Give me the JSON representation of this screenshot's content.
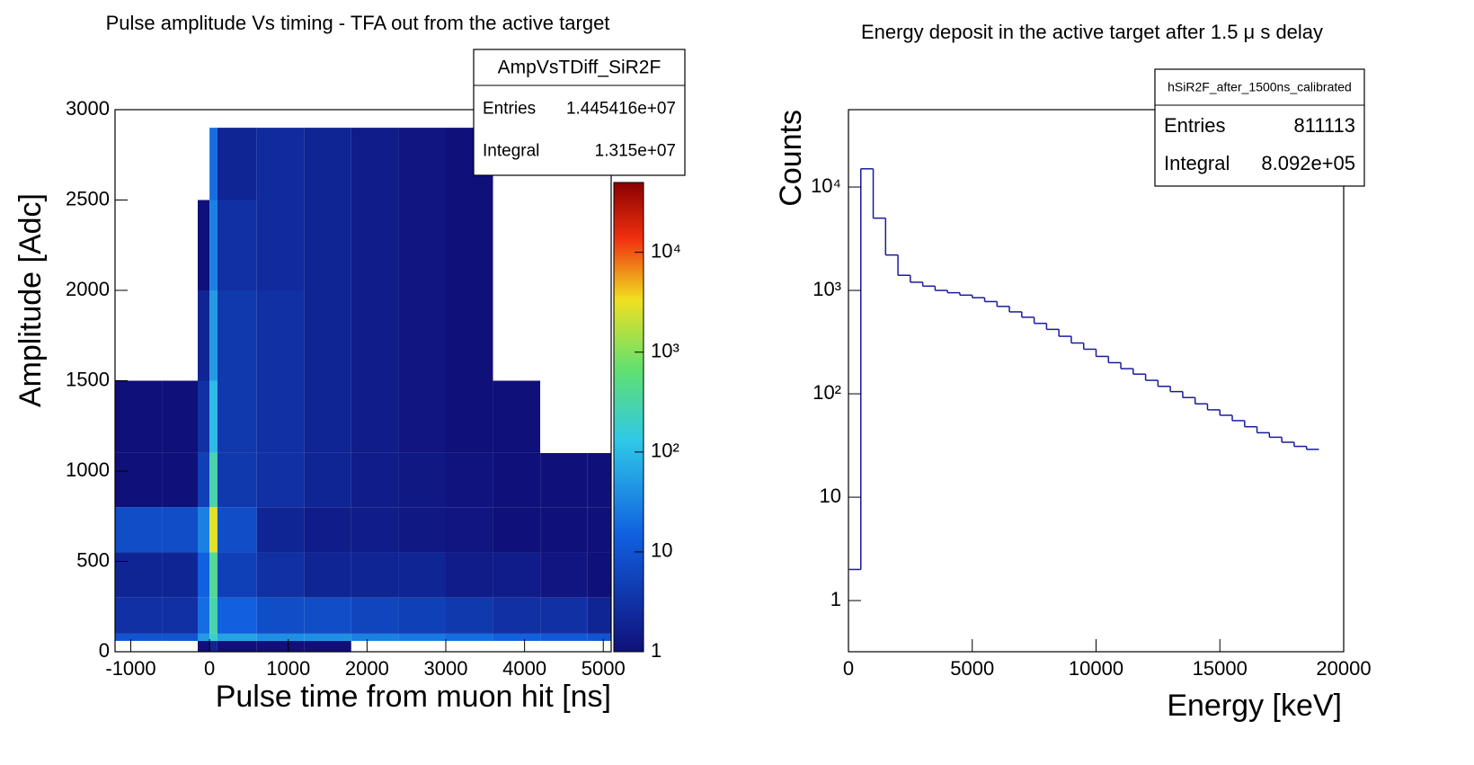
{
  "chart_data": [
    {
      "type": "heatmap",
      "title": "Pulse amplitude Vs timing - TFA out from the active target",
      "x_label": "Pulse time from muon hit [ns]",
      "y_label": "Amplitude [Adc]",
      "x_bins": [
        -1200,
        -600,
        -150,
        0,
        100,
        600,
        1200,
        1800,
        2400,
        3000,
        3600,
        4200,
        4800,
        5100
      ],
      "y_bins": [
        0,
        60,
        100,
        300,
        550,
        800,
        1100,
        1500,
        2000,
        2500,
        2900
      ],
      "values": [
        [
          0,
          0,
          1,
          2,
          1,
          1,
          1,
          0,
          0,
          0,
          0,
          0,
          0
        ],
        [
          10,
          10,
          50,
          200,
          60,
          40,
          40,
          30,
          25,
          20,
          15,
          12,
          10
        ],
        [
          3,
          3,
          20,
          300,
          15,
          8,
          8,
          6,
          5,
          4,
          3,
          3,
          2
        ],
        [
          2,
          2,
          15,
          400,
          5,
          3,
          2,
          2,
          2,
          1.5,
          1.5,
          1.2,
          1
        ],
        [
          8,
          8,
          30,
          3000,
          8,
          2,
          1.5,
          1.5,
          1.3,
          1.2,
          1,
          1,
          1
        ],
        [
          1,
          1,
          5,
          300,
          4,
          3,
          2,
          1.5,
          1.3,
          1.1,
          1,
          1,
          1
        ],
        [
          1,
          1,
          3,
          100,
          4,
          3,
          2,
          1.5,
          1.2,
          1,
          1,
          0.7,
          0.5
        ],
        [
          0.5,
          0.5,
          2,
          50,
          4,
          3,
          2,
          1.5,
          1.2,
          1,
          0.7,
          0.5,
          0.4
        ],
        [
          0.4,
          0.4,
          1,
          30,
          3,
          2.5,
          2,
          1.5,
          1.2,
          1,
          0.7,
          0.5,
          0.4
        ],
        [
          0.3,
          0.3,
          0.5,
          20,
          2,
          2.5,
          2,
          1.5,
          1.2,
          1,
          0.6,
          0.5,
          0.3
        ]
      ],
      "xlim": [
        -1200,
        5100
      ],
      "ylim": [
        0,
        3000
      ],
      "xticks": [
        -1000,
        0,
        1000,
        2000,
        3000,
        4000,
        5000
      ],
      "yticks": [
        0,
        500,
        1000,
        1500,
        2000,
        2500,
        3000
      ],
      "zlim": [
        1,
        50000
      ],
      "zticks": [
        1,
        10,
        {
          "value": 100,
          "label": "10²"
        },
        {
          "value": 1000,
          "label": "10³"
        },
        {
          "value": 10000,
          "label": "10⁴"
        }
      ],
      "zlog": true,
      "stats": {
        "title": "AmpVsTDiff_SiR2F",
        "rows": [
          [
            "Entries",
            "1.445416e+07"
          ],
          [
            "Integral",
            "1.315e+07"
          ]
        ]
      }
    },
    {
      "type": "histogram",
      "title": "Energy deposit in the active target after 1.5 μ s delay",
      "x_label": "Energy [keV]",
      "y_label": "Counts",
      "color": "#1a1aa0",
      "bins": [
        0,
        500,
        1000,
        1500,
        2000,
        2500,
        3000,
        3500,
        4000,
        4500,
        5000,
        5500,
        6000,
        6500,
        7000,
        7500,
        8000,
        8500,
        9000,
        9500,
        10000,
        10500,
        11000,
        11500,
        12000,
        12500,
        13000,
        13500,
        14000,
        14500,
        15000,
        15500,
        16000,
        16500,
        17000,
        17500,
        18000,
        18500,
        19000
      ],
      "values": [
        2,
        15000,
        5000,
        2200,
        1400,
        1200,
        1100,
        1000,
        950,
        900,
        850,
        780,
        700,
        620,
        550,
        480,
        420,
        360,
        310,
        270,
        230,
        200,
        175,
        155,
        135,
        118,
        105,
        92,
        80,
        70,
        62,
        55,
        48,
        42,
        38,
        34,
        31,
        29
      ],
      "xlim": [
        0,
        20000
      ],
      "ylim": [
        0.32,
        56000
      ],
      "ylog": true,
      "xticks": [
        0,
        5000,
        10000,
        15000,
        20000
      ],
      "yticks": [
        1,
        10,
        {
          "value": 100,
          "label": "10²"
        },
        {
          "value": 1000,
          "label": "10³"
        },
        {
          "value": 10000,
          "label": "10⁴"
        }
      ],
      "stats": {
        "title": "hSiR2F_after_1500ns_calibrated",
        "rows": [
          [
            "Entries",
            811113
          ],
          [
            "Integral",
            "8.092e+05"
          ]
        ]
      }
    }
  ]
}
